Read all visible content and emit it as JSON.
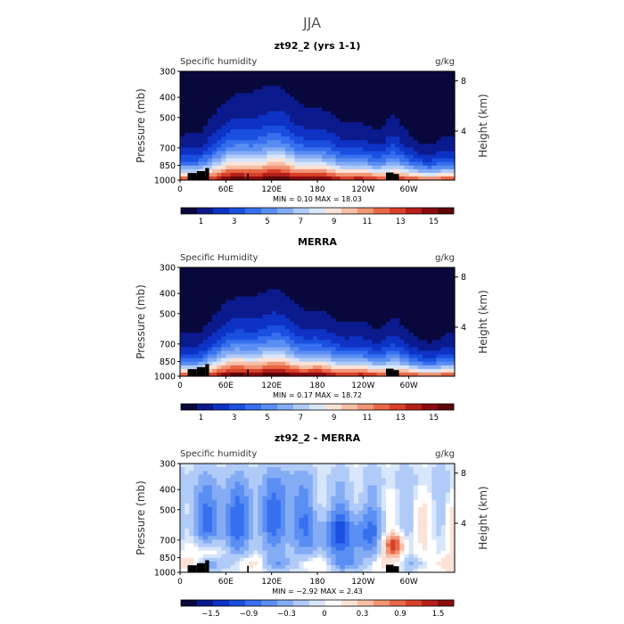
{
  "figure_title": "JJA",
  "chart_data": [
    {
      "type": "heatmap",
      "title": "zt92_2 (yrs 1-1)",
      "field_label": "Specific humidity",
      "units": "g/kg",
      "ylabel": "Pressure (mb)",
      "ylabel_right": "Height (km)",
      "x_ticks": [
        "0",
        "60E",
        "120E",
        "180",
        "120W",
        "60W"
      ],
      "x_tick_lons": [
        0,
        60,
        120,
        180,
        240,
        300
      ],
      "xlim": [
        0,
        360
      ],
      "y_ticks": [
        300,
        400,
        500,
        700,
        850,
        1000
      ],
      "ylim": [
        300,
        1000
      ],
      "height_ticks": [
        8,
        4
      ],
      "stats": {
        "min_label": "MIN =",
        "min": "0.10",
        "max_label": "MAX =",
        "max": "18.03"
      },
      "colorbar": {
        "labels": [
          "1",
          "3",
          "5",
          "7",
          "9",
          "11",
          "13",
          "15"
        ],
        "colors": [
          "#08083d",
          "#0b1a8c",
          "#0e32c4",
          "#1a4fe0",
          "#3770ee",
          "#5b8ef2",
          "#84acf5",
          "#b0cbf8",
          "#d8e6fb",
          "#fbe3d7",
          "#f6c0a7",
          "#f19675",
          "#e86848",
          "#d8402a",
          "#b5201a",
          "#8a0c10",
          "#5e0508"
        ]
      }
    },
    {
      "type": "heatmap",
      "title": "MERRA",
      "field_label": "Specific Humidity",
      "units": "g/kg",
      "ylabel": "Pressure (mb)",
      "ylabel_right": "Height (km)",
      "x_ticks": [
        "0",
        "60E",
        "120E",
        "180",
        "120W",
        "60W"
      ],
      "x_tick_lons": [
        0,
        60,
        120,
        180,
        240,
        300
      ],
      "xlim": [
        0,
        360
      ],
      "y_ticks": [
        300,
        400,
        500,
        700,
        850,
        1000
      ],
      "ylim": [
        300,
        1000
      ],
      "height_ticks": [
        8,
        4
      ],
      "stats": {
        "min_label": "MIN =",
        "min": "0.17",
        "max_label": "MAX =",
        "max": "18.72"
      },
      "colorbar": {
        "labels": [
          "1",
          "3",
          "5",
          "7",
          "9",
          "11",
          "13",
          "15"
        ],
        "colors": [
          "#08083d",
          "#0b1a8c",
          "#0e32c4",
          "#1a4fe0",
          "#3770ee",
          "#5b8ef2",
          "#84acf5",
          "#b0cbf8",
          "#d8e6fb",
          "#fbe3d7",
          "#f6c0a7",
          "#f19675",
          "#e86848",
          "#d8402a",
          "#b5201a",
          "#8a0c10",
          "#5e0508"
        ]
      }
    },
    {
      "type": "heatmap",
      "title": "zt92_2 - MERRA",
      "field_label": "Specific humidity",
      "units": "g/kg",
      "ylabel": "Pressure (mb)",
      "ylabel_right": "Height (km)",
      "x_ticks": [
        "0",
        "60E",
        "120E",
        "180",
        "120W",
        "60W"
      ],
      "x_tick_lons": [
        0,
        60,
        120,
        180,
        240,
        300
      ],
      "xlim": [
        0,
        360
      ],
      "y_ticks": [
        300,
        400,
        500,
        700,
        850,
        1000
      ],
      "ylim": [
        300,
        1000
      ],
      "height_ticks": [
        8,
        4
      ],
      "stats": {
        "min_label": "MIN =",
        "min": "−2.92",
        "max_label": "MAX =",
        "max": "2.43"
      },
      "colorbar": {
        "labels": [
          "−1.5",
          "−0.9",
          "−0.3",
          "0",
          "0.3",
          "0.9",
          "1.5"
        ],
        "colors": [
          "#08083d",
          "#0b1a8c",
          "#0e32c4",
          "#1a4fe0",
          "#3770ee",
          "#5b8ef2",
          "#84acf5",
          "#b0cbf8",
          "#d8e6fb",
          "#ffffff",
          "#fbe3d7",
          "#f6c0a7",
          "#f19675",
          "#e86848",
          "#d8402a",
          "#b5201a",
          "#8a0c10"
        ]
      }
    }
  ]
}
